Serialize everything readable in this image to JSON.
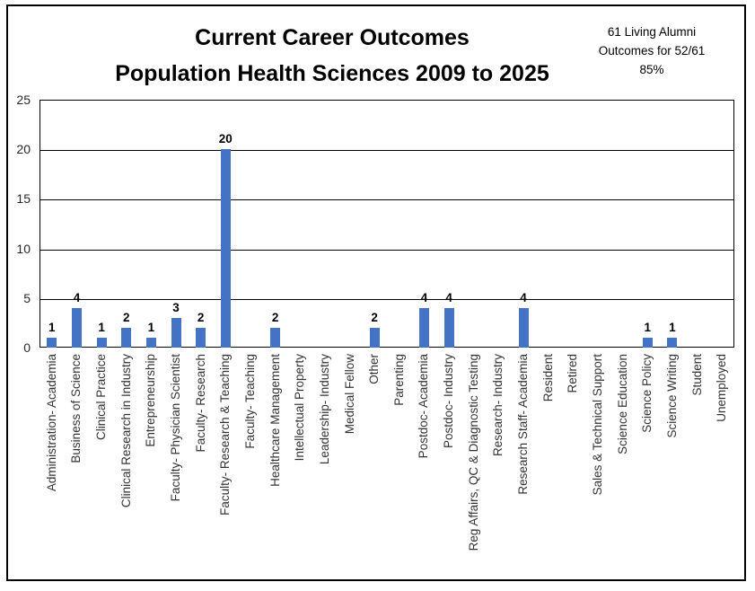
{
  "chart_data": {
    "type": "bar",
    "title_lines": [
      "Current Career Outcomes",
      "Population Health Sciences 2009 to 2025"
    ],
    "annotation_lines": [
      "61 Living Alumni",
      "Outcomes for 52/61",
      "85%"
    ],
    "categories": [
      "Administration- Academia",
      "Business of Science",
      "Clinical Practice",
      "Clinical Research in Industry",
      "Entrepreneurship",
      "Faculty- Physician Scientist",
      "Faculty- Research",
      "Faculty- Research & Teaching",
      "Faculty- Teaching",
      "Healthcare Management",
      "Intellectual Property",
      "Leadership- Industry",
      "Medical Fellow",
      "Other",
      "Parenting",
      "Postdoc- Academia",
      "Postdoc- Industry",
      "Reg Affairs, QC & Diagnostic Testing",
      "Research- Industry",
      "Research Staff- Academia",
      "Resident",
      "Retired",
      "Sales & Technical Support",
      "Science Education",
      "Science Policy",
      "Science Writing",
      "Student",
      "Unemployed"
    ],
    "values": [
      1,
      4,
      1,
      2,
      1,
      3,
      2,
      20,
      0,
      2,
      0,
      0,
      0,
      2,
      0,
      4,
      4,
      0,
      0,
      4,
      0,
      0,
      0,
      0,
      1,
      1,
      0,
      0
    ],
    "xlabel": "",
    "ylabel": "",
    "ylim": [
      0,
      25
    ],
    "yticks": [
      0,
      5,
      10,
      15,
      20,
      25
    ],
    "bar_color": "#4472C4",
    "grid": true,
    "legend": "none"
  }
}
